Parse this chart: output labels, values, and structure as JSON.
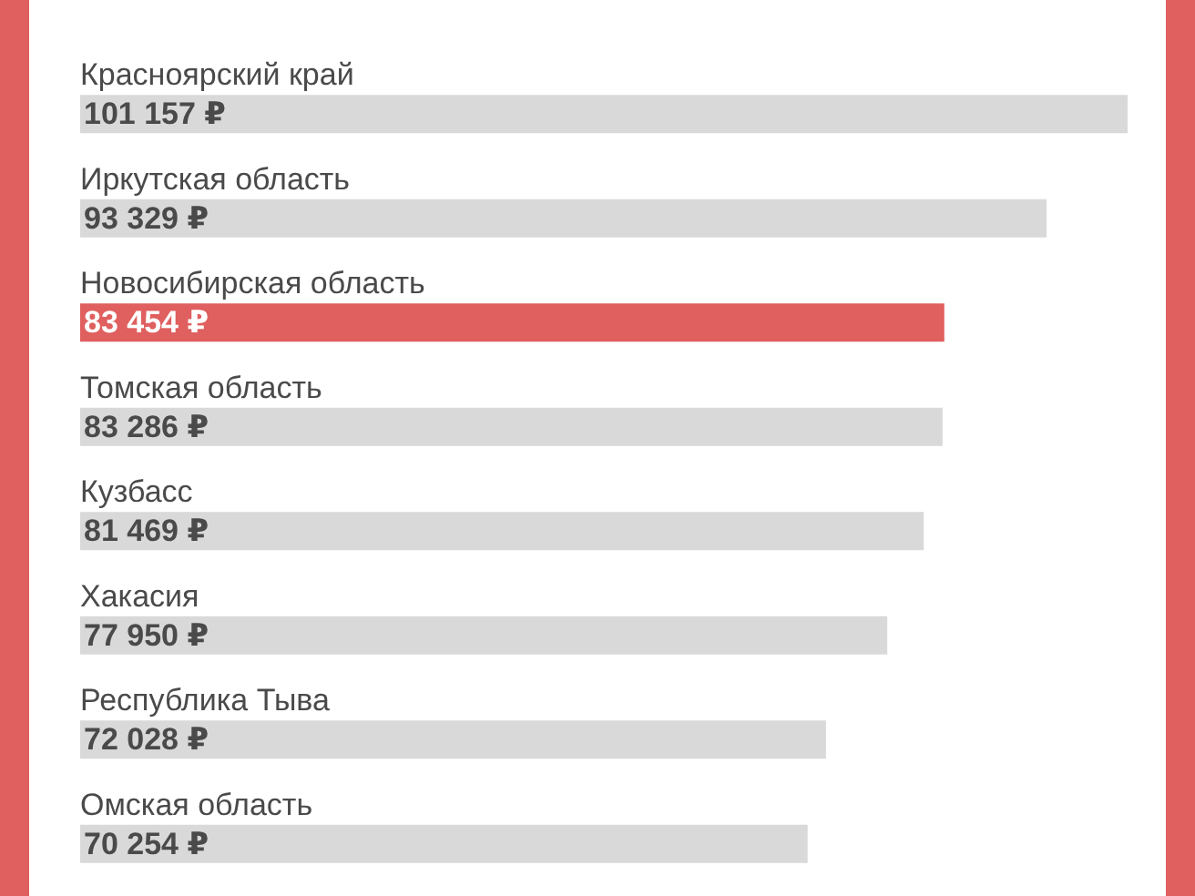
{
  "chart_data": {
    "type": "bar",
    "orientation": "horizontal",
    "tick_labels": "y",
    "categories": [
      "Красноярский край",
      "Иркутская область",
      "Новосибирская область",
      "Томская область",
      "Кузбасс",
      "Хакасия",
      "Республика Тыва",
      "Омская область"
    ],
    "values": [
      101157,
      93329,
      83454,
      83286,
      81469,
      77950,
      72028,
      70254
    ],
    "colors": [
      "#d9d9d9",
      "#d9d9d9",
      "#e05f5f",
      "#d9d9d9",
      "#d9d9d9",
      "#d9d9d9",
      "#d9d9d9",
      "#d9d9d9"
    ],
    "value_labels": [
      "101 157 ₽",
      "93 329 ₽",
      "83 454 ₽",
      "83 286 ₽",
      "81 469 ₽",
      "77 950 ₽",
      "72 028 ₽",
      "70 254 ₽"
    ]
  }
}
